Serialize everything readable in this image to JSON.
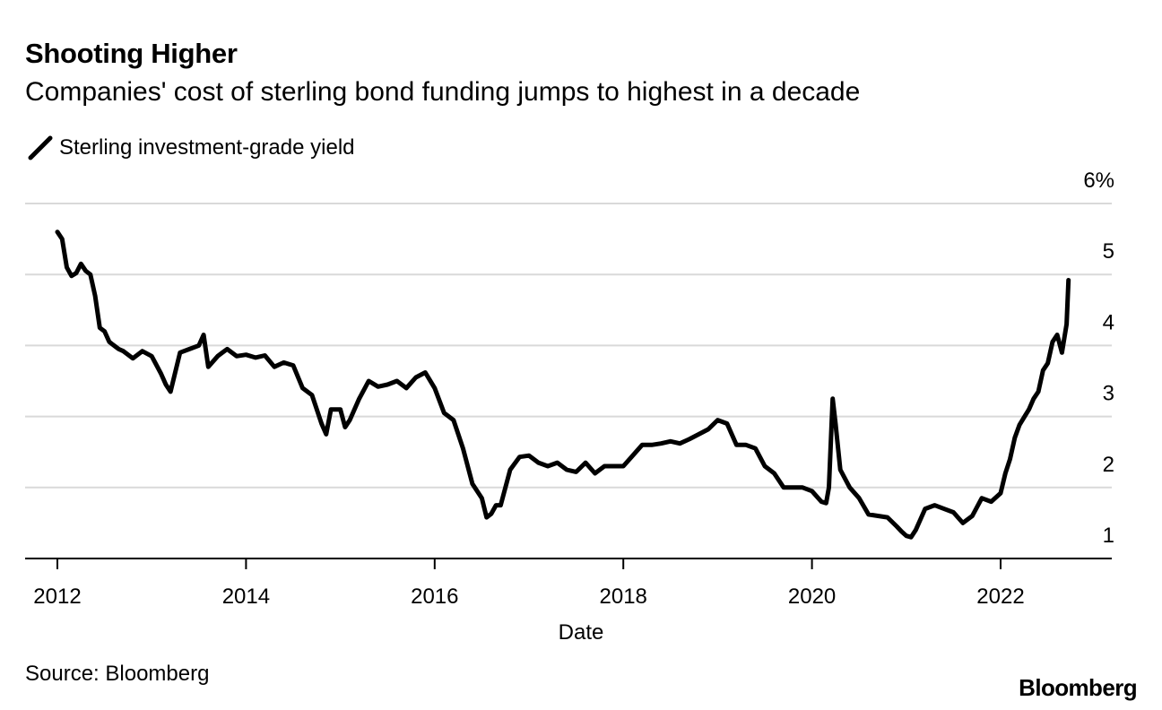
{
  "header": {
    "title": "Shooting Higher",
    "subtitle": "Companies' cost of sterling bond funding jumps to highest in a decade"
  },
  "footer": {
    "source": "Source: Bloomberg",
    "brand": "Bloomberg"
  },
  "colors": {
    "line": "#000000",
    "grid": "#d9d9d9",
    "axis": "#000000",
    "background": "#ffffff"
  },
  "chart_data": {
    "type": "line",
    "title": "Shooting Higher",
    "subtitle": "Companies' cost of sterling bond funding jumps to highest in a decade",
    "xlabel": "Date",
    "ylabel": "",
    "legend": {
      "position": "top-left",
      "entries": [
        "Sterling investment-grade yield"
      ]
    },
    "xlim": [
      2011.6,
      2023.2
    ],
    "ylim": [
      1,
      6
    ],
    "x_ticks": [
      2012,
      2014,
      2016,
      2018,
      2020,
      2022
    ],
    "x_tick_labels": [
      "2012",
      "2014",
      "2016",
      "2018",
      "2020",
      "2022"
    ],
    "y_ticks": [
      1,
      2,
      3,
      4,
      5,
      6
    ],
    "y_tick_labels": [
      "1",
      "2",
      "3",
      "4",
      "5",
      "6%"
    ],
    "grid": true,
    "series": [
      {
        "name": "Sterling investment-grade yield",
        "x": [
          2012.0,
          2012.05,
          2012.1,
          2012.15,
          2012.2,
          2012.25,
          2012.3,
          2012.35,
          2012.4,
          2012.45,
          2012.5,
          2012.55,
          2012.6,
          2012.65,
          2012.7,
          2012.8,
          2012.9,
          2013.0,
          2013.1,
          2013.15,
          2013.2,
          2013.3,
          2013.4,
          2013.5,
          2013.55,
          2013.6,
          2013.7,
          2013.75,
          2013.8,
          2013.9,
          2014.0,
          2014.1,
          2014.2,
          2014.3,
          2014.4,
          2014.5,
          2014.6,
          2014.7,
          2014.8,
          2014.85,
          2014.9,
          2015.0,
          2015.05,
          2015.1,
          2015.2,
          2015.3,
          2015.4,
          2015.5,
          2015.6,
          2015.7,
          2015.8,
          2015.9,
          2016.0,
          2016.1,
          2016.2,
          2016.3,
          2016.4,
          2016.5,
          2016.55,
          2016.6,
          2016.65,
          2016.7,
          2016.8,
          2016.9,
          2017.0,
          2017.1,
          2017.2,
          2017.3,
          2017.4,
          2017.5,
          2017.6,
          2017.7,
          2017.8,
          2017.9,
          2018.0,
          2018.1,
          2018.2,
          2018.3,
          2018.4,
          2018.5,
          2018.6,
          2018.7,
          2018.8,
          2018.9,
          2019.0,
          2019.1,
          2019.2,
          2019.3,
          2019.4,
          2019.5,
          2019.6,
          2019.7,
          2019.8,
          2019.9,
          2020.0,
          2020.1,
          2020.15,
          2020.18,
          2020.22,
          2020.25,
          2020.3,
          2020.4,
          2020.5,
          2020.6,
          2020.7,
          2020.8,
          2020.9,
          2020.95,
          2021.0,
          2021.05,
          2021.1,
          2021.15,
          2021.2,
          2021.3,
          2021.4,
          2021.5,
          2021.6,
          2021.65,
          2021.7,
          2021.8,
          2021.9,
          2022.0,
          2022.05,
          2022.1,
          2022.15,
          2022.2,
          2022.3,
          2022.35,
          2022.4,
          2022.45,
          2022.5,
          2022.55,
          2022.6,
          2022.65,
          2022.7,
          2022.72
        ],
        "y": [
          5.6,
          5.5,
          5.1,
          4.98,
          5.02,
          5.15,
          5.05,
          5.0,
          4.7,
          4.25,
          4.2,
          4.05,
          4.0,
          3.95,
          3.92,
          3.82,
          3.92,
          3.85,
          3.6,
          3.45,
          3.35,
          3.9,
          3.95,
          4.0,
          4.15,
          3.7,
          3.85,
          3.9,
          3.95,
          3.85,
          3.87,
          3.83,
          3.86,
          3.7,
          3.76,
          3.72,
          3.4,
          3.3,
          2.9,
          2.75,
          3.1,
          3.1,
          2.85,
          2.95,
          3.25,
          3.5,
          3.42,
          3.45,
          3.5,
          3.4,
          3.55,
          3.62,
          3.4,
          3.05,
          2.95,
          2.55,
          2.05,
          1.85,
          1.58,
          1.63,
          1.75,
          1.75,
          2.25,
          2.43,
          2.45,
          2.35,
          2.3,
          2.35,
          2.25,
          2.22,
          2.35,
          2.2,
          2.3,
          2.3,
          2.3,
          2.45,
          2.6,
          2.6,
          2.62,
          2.65,
          2.62,
          2.68,
          2.75,
          2.82,
          2.95,
          2.9,
          2.6,
          2.6,
          2.55,
          2.3,
          2.2,
          2.0,
          2.0,
          2.0,
          1.95,
          1.8,
          1.78,
          2.0,
          3.25,
          2.9,
          2.25,
          2.0,
          1.85,
          1.62,
          1.6,
          1.58,
          1.45,
          1.38,
          1.32,
          1.3,
          1.4,
          1.55,
          1.7,
          1.75,
          1.7,
          1.65,
          1.5,
          1.55,
          1.6,
          1.85,
          1.8,
          1.92,
          2.2,
          2.4,
          2.7,
          2.88,
          3.1,
          3.25,
          3.35,
          3.65,
          3.75,
          4.05,
          4.15,
          3.9,
          4.3,
          4.92
        ]
      }
    ]
  }
}
